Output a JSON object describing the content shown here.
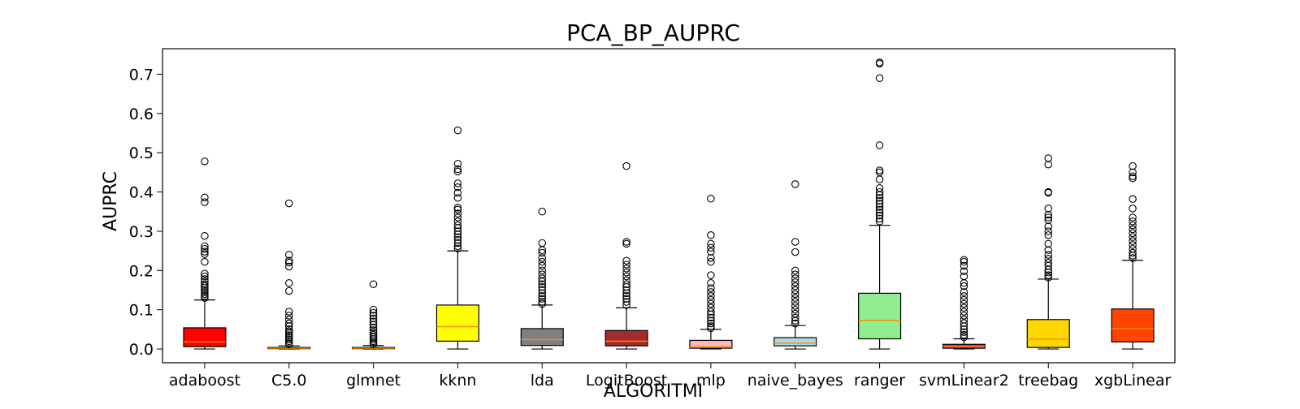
{
  "chart_data": {
    "type": "box",
    "title": "PCA_BP_AUPRC",
    "xlabel": "ALGORITMI",
    "ylabel": "AUPRC",
    "ylim": [
      -0.035,
      0.765
    ],
    "yticks": [
      "0.0",
      "0.1",
      "0.2",
      "0.3",
      "0.4",
      "0.5",
      "0.6",
      "0.7"
    ],
    "grid": false,
    "categories": [
      "adaboost",
      "C5.0",
      "glmnet",
      "kknn",
      "lda",
      "LogitBoost",
      "mlp",
      "naive_bayes",
      "ranger",
      "svmLinear2",
      "treebag",
      "xgbLinear"
    ],
    "series": [
      {
        "category": "adaboost",
        "color": "#ff0000",
        "whisker_low": 0.0,
        "q1": 0.006,
        "median": 0.018,
        "q3": 0.054,
        "whisker_high": 0.125,
        "outliers": [
          0.478,
          0.386,
          0.374,
          0.288,
          0.262,
          0.255,
          0.248,
          0.242,
          0.222,
          0.192,
          0.185,
          0.178,
          0.172,
          0.165,
          0.16,
          0.155,
          0.15,
          0.145,
          0.14,
          0.135,
          0.13
        ]
      },
      {
        "category": "C5.0",
        "color": "#ff8c00",
        "whisker_low": 0.0,
        "q1": 0.001,
        "median": 0.002,
        "q3": 0.004,
        "whisker_high": 0.008,
        "outliers": [
          0.371,
          0.24,
          0.225,
          0.22,
          0.21,
          0.168,
          0.148,
          0.095,
          0.085,
          0.075,
          0.065,
          0.058,
          0.05,
          0.045,
          0.04,
          0.035,
          0.03,
          0.025,
          0.02,
          0.015,
          0.012
        ]
      },
      {
        "category": "glmnet",
        "color": "#ff8c00",
        "whisker_low": 0.0,
        "q1": 0.001,
        "median": 0.002,
        "q3": 0.004,
        "whisker_high": 0.009,
        "outliers": [
          0.165,
          0.1,
          0.092,
          0.085,
          0.078,
          0.07,
          0.062,
          0.055,
          0.048,
          0.042,
          0.036,
          0.03,
          0.025,
          0.02,
          0.016,
          0.012
        ]
      },
      {
        "category": "kknn",
        "color": "#ffff00",
        "whisker_low": 0.0,
        "q1": 0.02,
        "median": 0.057,
        "q3": 0.112,
        "whisker_high": 0.25,
        "outliers": [
          0.557,
          0.472,
          0.458,
          0.452,
          0.422,
          0.412,
          0.398,
          0.385,
          0.36,
          0.355,
          0.345,
          0.335,
          0.325,
          0.315,
          0.308,
          0.3,
          0.292,
          0.285,
          0.278,
          0.27,
          0.262,
          0.256
        ]
      },
      {
        "category": "lda",
        "color": "#808080",
        "whisker_low": 0.0,
        "q1": 0.009,
        "median": 0.024,
        "q3": 0.052,
        "whisker_high": 0.112,
        "outliers": [
          0.35,
          0.27,
          0.252,
          0.245,
          0.232,
          0.222,
          0.212,
          0.2,
          0.19,
          0.18,
          0.172,
          0.165,
          0.158,
          0.15,
          0.142,
          0.135,
          0.128,
          0.12,
          0.115
        ]
      },
      {
        "category": "LogitBoost",
        "color": "#a52a2a",
        "whisker_low": 0.0,
        "q1": 0.008,
        "median": 0.02,
        "q3": 0.047,
        "whisker_high": 0.105,
        "outliers": [
          0.466,
          0.273,
          0.268,
          0.225,
          0.215,
          0.205,
          0.195,
          0.185,
          0.175,
          0.165,
          0.158,
          0.15,
          0.142,
          0.135,
          0.128,
          0.12,
          0.112
        ]
      },
      {
        "category": "mlp",
        "color": "#ffb6c1",
        "whisker_low": 0.0,
        "q1": 0.002,
        "median": 0.006,
        "q3": 0.022,
        "whisker_high": 0.05,
        "outliers": [
          0.383,
          0.29,
          0.268,
          0.258,
          0.248,
          0.232,
          0.222,
          0.188,
          0.168,
          0.155,
          0.145,
          0.135,
          0.125,
          0.115,
          0.105,
          0.095,
          0.088,
          0.08,
          0.072,
          0.065,
          0.058,
          0.053
        ]
      },
      {
        "category": "naive_bayes",
        "color": "#add8e6",
        "whisker_low": 0.0,
        "q1": 0.008,
        "median": 0.015,
        "q3": 0.029,
        "whisker_high": 0.06,
        "outliers": [
          0.42,
          0.273,
          0.247,
          0.2,
          0.19,
          0.18,
          0.17,
          0.16,
          0.15,
          0.14,
          0.13,
          0.12,
          0.11,
          0.1,
          0.09,
          0.08,
          0.072,
          0.065
        ]
      },
      {
        "category": "ranger",
        "color": "#90ee90",
        "whisker_low": 0.0,
        "q1": 0.026,
        "median": 0.073,
        "q3": 0.142,
        "whisker_high": 0.315,
        "outliers": [
          0.73,
          0.727,
          0.69,
          0.519,
          0.455,
          0.45,
          0.432,
          0.41,
          0.4,
          0.392,
          0.385,
          0.378,
          0.37,
          0.362,
          0.355,
          0.348,
          0.34,
          0.332,
          0.325
        ]
      },
      {
        "category": "svmLinear2",
        "color": "#ff1493",
        "whisker_low": 0.0,
        "q1": 0.002,
        "median": 0.006,
        "q3": 0.012,
        "whisker_high": 0.026,
        "outliers": [
          0.227,
          0.222,
          0.212,
          0.198,
          0.185,
          0.168,
          0.16,
          0.145,
          0.135,
          0.125,
          0.115,
          0.105,
          0.095,
          0.085,
          0.075,
          0.066,
          0.058,
          0.05,
          0.043,
          0.036,
          0.03
        ]
      },
      {
        "category": "treebag",
        "color": "#ffd700",
        "whisker_low": 0.0,
        "q1": 0.004,
        "median": 0.025,
        "q3": 0.075,
        "whisker_high": 0.178,
        "outliers": [
          0.486,
          0.47,
          0.4,
          0.398,
          0.358,
          0.342,
          0.335,
          0.328,
          0.312,
          0.3,
          0.29,
          0.268,
          0.252,
          0.24,
          0.23,
          0.22,
          0.212,
          0.202,
          0.195,
          0.188,
          0.182
        ]
      },
      {
        "category": "xgbLinear",
        "color": "#ff4500",
        "whisker_low": 0.0,
        "q1": 0.018,
        "median": 0.052,
        "q3": 0.102,
        "whisker_high": 0.226,
        "outliers": [
          0.466,
          0.45,
          0.44,
          0.435,
          0.382,
          0.358,
          0.335,
          0.325,
          0.315,
          0.305,
          0.295,
          0.285,
          0.275,
          0.265,
          0.255,
          0.245,
          0.238,
          0.232
        ]
      }
    ],
    "median_color": "#ff8c00"
  }
}
